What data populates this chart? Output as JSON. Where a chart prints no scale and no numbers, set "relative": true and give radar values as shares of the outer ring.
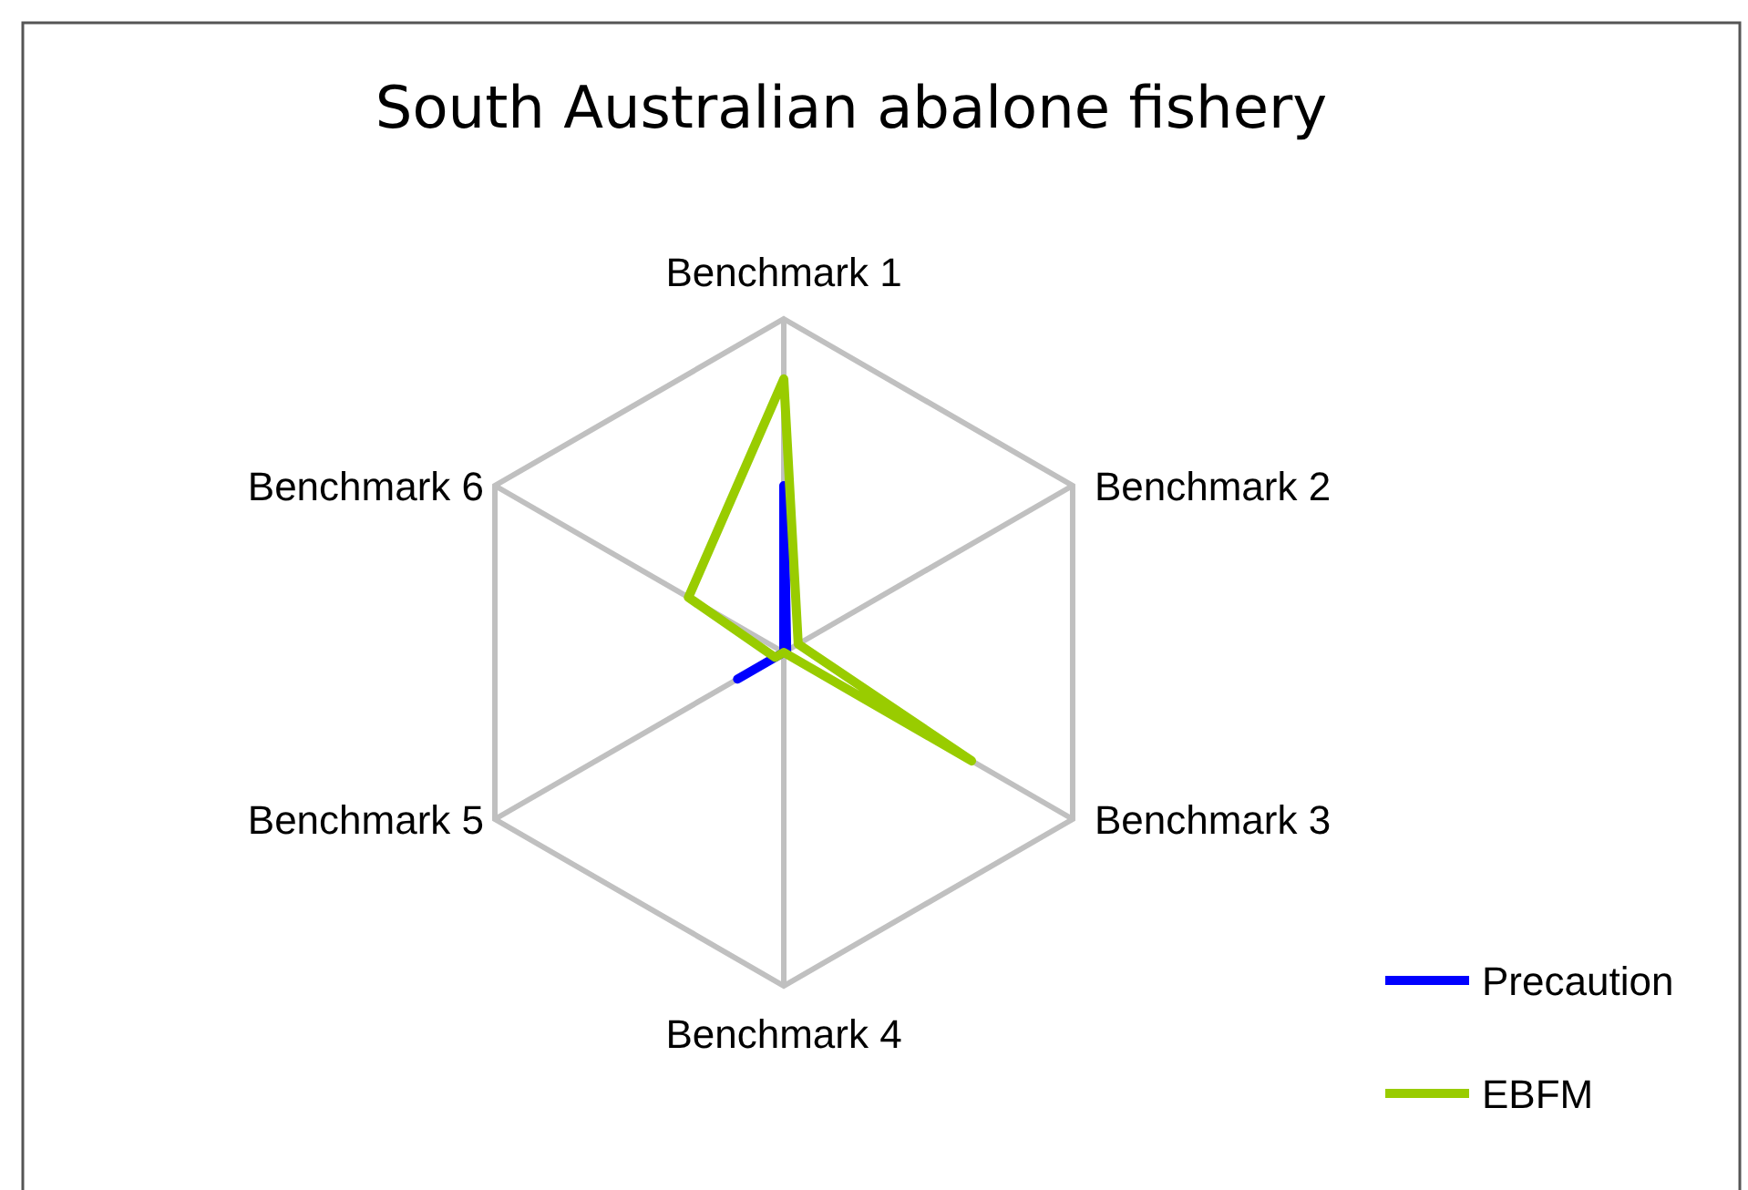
{
  "chart_data": {
    "type": "radar",
    "title": "South Australian abalone fishery",
    "categories": [
      "Benchmark 1",
      "Benchmark 2",
      "Benchmark 3",
      "Benchmark 4",
      "Benchmark 5",
      "Benchmark 6"
    ],
    "relative": true,
    "grid": true,
    "legend": "bottom right",
    "marker": "none",
    "series": [
      {
        "name": "Precaution",
        "color": "#0000ff",
        "values": [
          0.5,
          0.01,
          0,
          0,
          0.16,
          0
        ]
      },
      {
        "name": "EBFM",
        "color": "#99cc00",
        "values": [
          0.82,
          0.05,
          0.65,
          0,
          0.03,
          0.33
        ]
      }
    ]
  }
}
